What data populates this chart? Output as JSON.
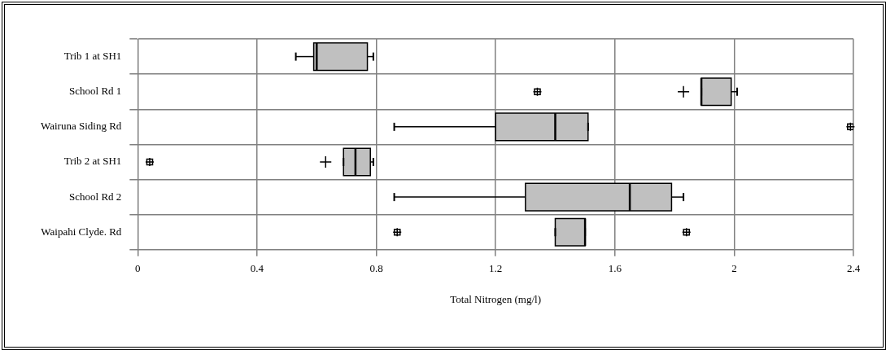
{
  "chart_data": {
    "type": "box",
    "orientation": "horizontal",
    "xlabel": "Total Nitrogen (mg/l)",
    "categories": [
      "Trib 1 at SH1",
      "School Rd 1",
      "Wairuna Siding Rd",
      "Trib 2 at SH1",
      "School Rd 2",
      "Waipahi Clyde. Rd"
    ],
    "color": "#c0c0c0",
    "grid": true,
    "legend": false,
    "xlim": [
      0,
      2.4
    ],
    "xticks": [
      0,
      0.4,
      0.8,
      1.2,
      1.6,
      2,
      2.4
    ],
    "boxes": [
      {
        "low": 0.53,
        "q1": 0.59,
        "median": 0.6,
        "q3": 0.77,
        "high": 0.79,
        "mean": 0.66
      },
      {
        "low": 1.89,
        "q1": 1.89,
        "median": 1.89,
        "q3": 1.99,
        "high": 2.01,
        "mean": 1.83,
        "outliers": [
          1.34
        ]
      },
      {
        "low": 0.86,
        "q1": 1.2,
        "median": 1.4,
        "q3": 1.51,
        "high": 1.51,
        "mean": 1.46,
        "outliers": [
          2.39
        ]
      },
      {
        "low": 0.69,
        "q1": 0.69,
        "median": 0.73,
        "q3": 0.78,
        "high": 0.79,
        "mean": 0.63,
        "outliers": [
          0.04
        ]
      },
      {
        "low": 0.86,
        "q1": 1.3,
        "median": 1.65,
        "q3": 1.79,
        "high": 1.83,
        "mean": 1.52
      },
      {
        "low": 1.4,
        "q1": 1.4,
        "median": 1.5,
        "q3": 1.5,
        "high": 1.5,
        "mean": 1.44,
        "outliers": [
          0.87,
          1.84
        ]
      }
    ]
  }
}
